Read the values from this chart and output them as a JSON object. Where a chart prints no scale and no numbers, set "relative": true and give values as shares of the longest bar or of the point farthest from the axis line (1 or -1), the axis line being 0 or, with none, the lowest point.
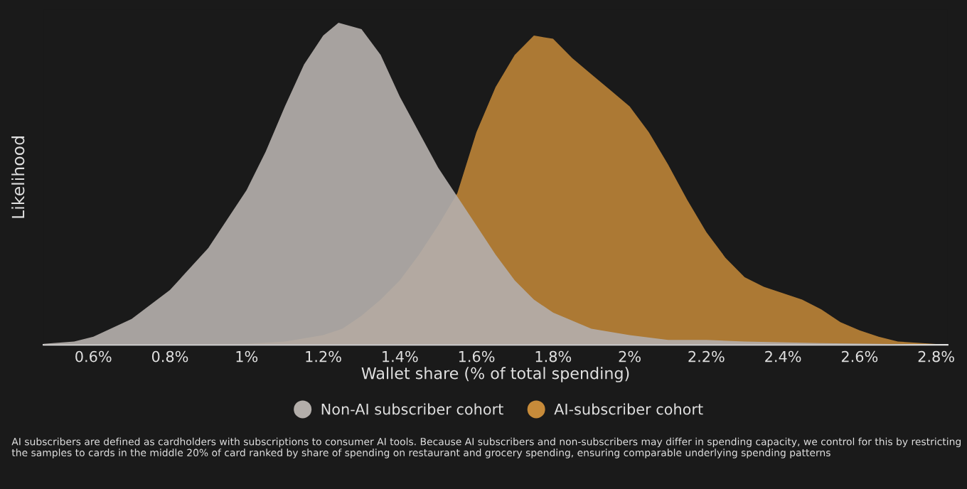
{
  "chart_data": {
    "type": "area",
    "relative": true,
    "xlabel": "Wallet share (% of total spending)",
    "ylabel": "Likelihood",
    "xlim": [
      0.47,
      2.83
    ],
    "xticks": [
      {
        "value": 0.6,
        "label": "0.6%"
      },
      {
        "value": 0.8,
        "label": "0.8%"
      },
      {
        "value": 1,
        "label": "1%"
      },
      {
        "value": 1.2,
        "label": "1.2%"
      },
      {
        "value": 1.4,
        "label": "1.4%"
      },
      {
        "value": 1.6,
        "label": "1.6%"
      },
      {
        "value": 1.8,
        "label": "1.8%"
      },
      {
        "value": 2,
        "label": "2%"
      },
      {
        "value": 2.2,
        "label": "2.2%"
      },
      {
        "value": 2.4,
        "label": "2.4%"
      },
      {
        "value": 2.6,
        "label": "2.6%"
      },
      {
        "value": 2.8,
        "label": "2.8%"
      }
    ],
    "series": [
      {
        "name": "Non-AI subscriber cohort",
        "color": "#b3aeaa",
        "x": [
          0.47,
          0.55,
          0.6,
          0.7,
          0.8,
          0.9,
          1.0,
          1.05,
          1.1,
          1.15,
          1.2,
          1.24,
          1.3,
          1.35,
          1.4,
          1.45,
          1.5,
          1.55,
          1.6,
          1.65,
          1.7,
          1.75,
          1.8,
          1.9,
          2.0,
          2.1,
          2.2,
          2.3,
          2.5,
          2.83
        ],
        "values": [
          0.003,
          0.01,
          0.025,
          0.08,
          0.17,
          0.3,
          0.48,
          0.6,
          0.74,
          0.87,
          0.96,
          1.0,
          0.98,
          0.9,
          0.77,
          0.66,
          0.55,
          0.46,
          0.37,
          0.28,
          0.2,
          0.14,
          0.1,
          0.05,
          0.03,
          0.015,
          0.015,
          0.01,
          0.005,
          0
        ]
      },
      {
        "name": "AI-subscriber cohort",
        "color": "#c78b3a",
        "x": [
          0.47,
          1.0,
          1.1,
          1.2,
          1.25,
          1.3,
          1.35,
          1.4,
          1.45,
          1.5,
          1.55,
          1.6,
          1.65,
          1.7,
          1.75,
          1.8,
          1.85,
          1.9,
          1.95,
          2.0,
          2.05,
          2.1,
          2.15,
          2.2,
          2.25,
          2.3,
          2.35,
          2.4,
          2.45,
          2.5,
          2.55,
          2.6,
          2.65,
          2.7,
          2.83
        ],
        "values": [
          0,
          0.003,
          0.01,
          0.03,
          0.05,
          0.09,
          0.14,
          0.2,
          0.28,
          0.37,
          0.47,
          0.66,
          0.8,
          0.9,
          0.96,
          0.95,
          0.89,
          0.84,
          0.79,
          0.74,
          0.66,
          0.56,
          0.45,
          0.35,
          0.27,
          0.21,
          0.18,
          0.16,
          0.14,
          0.11,
          0.07,
          0.045,
          0.025,
          0.01,
          0
        ]
      }
    ],
    "legend": "bottom",
    "annotations": [
      "AI subscribers are defined as cardholders with subscriptions to consumer AI tools. Because AI subscribers and non-subscribers may differ in spending capacity, we control for this by restricting the samples to cards in the middle 20% of card ranked by share of spending on restaurant and grocery spending, ensuring comparable underlying spending patterns"
    ]
  }
}
